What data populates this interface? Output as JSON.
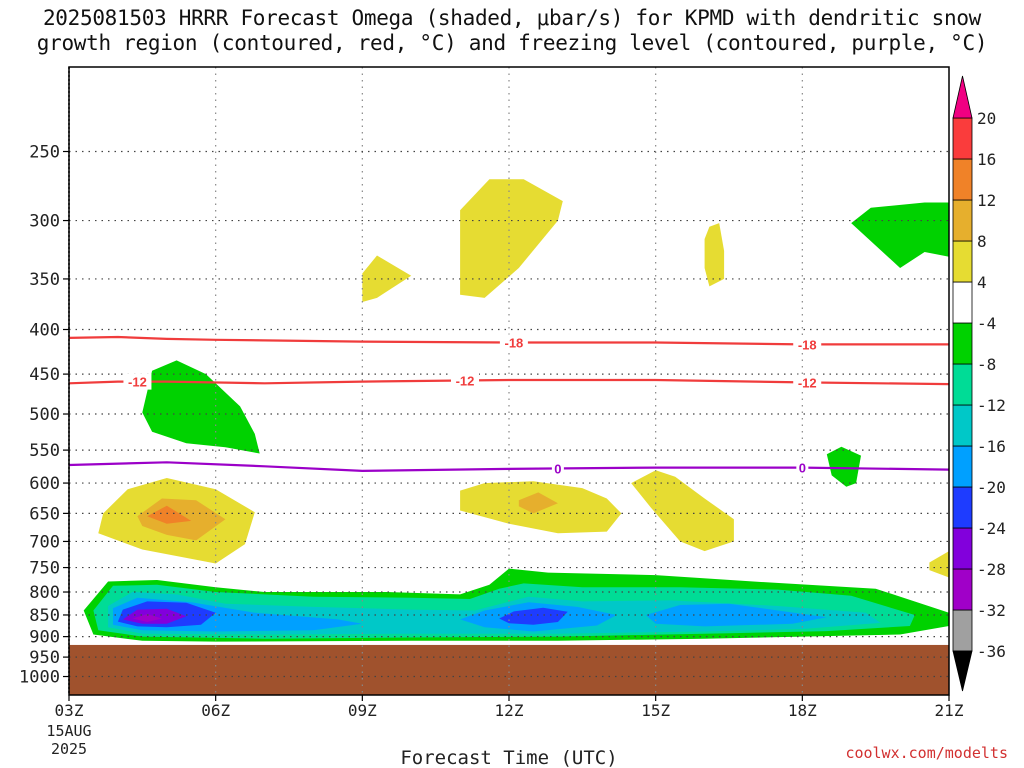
{
  "title": {
    "line1": "2025081503 HRRR Forecast Omega (shaded, μbar/s) for KPMD with dendritic snow",
    "line2": "growth region (contoured, red, °C) and freezing level (contoured, purple, °C)"
  },
  "credit": "coolwx.com/modelts",
  "chart_data": {
    "type": "heatmap",
    "title": "2025081503 HRRR Forecast Omega (shaded, μbar/s) for KPMD with dendritic snow growth region (contoured, red, °C) and freezing level (contoured, purple, °C)",
    "xlabel": "Forecast Time (UTC)",
    "ylabel": "",
    "x_hours_range": [
      3,
      21
    ],
    "x_ticks": [
      {
        "hour": 3,
        "label": "03Z",
        "sub": [
          "15AUG",
          "2025"
        ]
      },
      {
        "hour": 6,
        "label": "06Z"
      },
      {
        "hour": 9,
        "label": "09Z"
      },
      {
        "hour": 12,
        "label": "12Z"
      },
      {
        "hour": 15,
        "label": "15Z"
      },
      {
        "hour": 18,
        "label": "18Z"
      },
      {
        "hour": 21,
        "label": "21Z"
      }
    ],
    "y_scale": "log",
    "y_range_hpa": [
      1050,
      200
    ],
    "y_ticks": [
      250,
      300,
      350,
      400,
      450,
      500,
      550,
      600,
      650,
      700,
      750,
      800,
      850,
      900,
      950,
      1000
    ],
    "grid": true,
    "surface_pressure_hpa": 920,
    "surface_color": "#a0522d",
    "colorbar": {
      "levels": [
        -36,
        -32,
        -28,
        -24,
        -20,
        -16,
        -12,
        -8,
        -4,
        4,
        8,
        12,
        16,
        20
      ],
      "colors": [
        "#a0a0a0",
        "#a000c8",
        "#8200dc",
        "#1e3cff",
        "#00a0ff",
        "#00c8c8",
        "#00dc96",
        "#00d200",
        "#ffffff",
        "#e6dc32",
        "#e6af2d",
        "#f08228",
        "#fa3c3c",
        "#f00082"
      ],
      "under_color": "#000000",
      "over_color": "#f00082"
    },
    "omega_regions": [
      {
        "value": 6,
        "points": [
          [
            11.0,
            365
          ],
          [
            11.0,
            292
          ],
          [
            11.6,
            269
          ],
          [
            12.3,
            269
          ],
          [
            13.1,
            285
          ],
          [
            13.0,
            300
          ],
          [
            12.2,
            340
          ],
          [
            11.5,
            368
          ]
        ]
      },
      {
        "value": 6,
        "points": [
          [
            9.0,
            345
          ],
          [
            9.3,
            329
          ],
          [
            10.0,
            347
          ],
          [
            9.3,
            368
          ],
          [
            9.0,
            372
          ]
        ]
      },
      {
        "value": 6,
        "points": [
          [
            16.0,
            315
          ],
          [
            16.1,
            305
          ],
          [
            16.3,
            302
          ],
          [
            16.4,
            325
          ],
          [
            16.4,
            350
          ],
          [
            16.1,
            357
          ],
          [
            16.0,
            340
          ]
        ]
      },
      {
        "value": -6,
        "points": [
          [
            20.0,
            340
          ],
          [
            19.0,
            302
          ],
          [
            19.4,
            290
          ],
          [
            20.5,
            286
          ],
          [
            21.0,
            286
          ],
          [
            21.0,
            330
          ],
          [
            20.5,
            326
          ]
        ]
      },
      {
        "value": -6,
        "points": [
          [
            4.5,
            498
          ],
          [
            4.7,
            446
          ],
          [
            5.2,
            434
          ],
          [
            5.8,
            450
          ],
          [
            6.5,
            490
          ],
          [
            6.8,
            527
          ],
          [
            6.9,
            555
          ],
          [
            6.2,
            546
          ],
          [
            5.4,
            540
          ],
          [
            4.7,
            524
          ]
        ]
      },
      {
        "value": -6,
        "points": [
          [
            18.5,
            556
          ],
          [
            18.8,
            545
          ],
          [
            19.2,
            558
          ],
          [
            19.1,
            600
          ],
          [
            18.9,
            606
          ],
          [
            18.6,
            588
          ]
        ]
      },
      {
        "value": 6,
        "points": [
          [
            3.7,
            650
          ],
          [
            4.2,
            610
          ],
          [
            5.0,
            592
          ],
          [
            6.0,
            610
          ],
          [
            6.8,
            648
          ],
          [
            6.6,
            705
          ],
          [
            6.0,
            742
          ],
          [
            4.5,
            715
          ],
          [
            3.6,
            685
          ]
        ]
      },
      {
        "value": 10,
        "points": [
          [
            4.4,
            655
          ],
          [
            4.9,
            625
          ],
          [
            5.6,
            628
          ],
          [
            6.2,
            660
          ],
          [
            5.6,
            698
          ],
          [
            5.0,
            688
          ],
          [
            4.5,
            672
          ]
        ]
      },
      {
        "value": 14,
        "points": [
          [
            4.6,
            655
          ],
          [
            5.0,
            637
          ],
          [
            5.5,
            663
          ],
          [
            5.0,
            668
          ]
        ]
      },
      {
        "value": 6,
        "points": [
          [
            11.0,
            612
          ],
          [
            11.5,
            600
          ],
          [
            12.5,
            597
          ],
          [
            13.5,
            608
          ],
          [
            14.0,
            625
          ],
          [
            14.3,
            650
          ],
          [
            14.0,
            682
          ],
          [
            13.0,
            685
          ],
          [
            12.0,
            668
          ],
          [
            11.0,
            645
          ]
        ]
      },
      {
        "value": 10,
        "points": [
          [
            12.2,
            628
          ],
          [
            12.6,
            615
          ],
          [
            13.0,
            633
          ],
          [
            12.5,
            650
          ],
          [
            12.2,
            638
          ]
        ]
      },
      {
        "value": 6,
        "points": [
          [
            15.0,
            580
          ],
          [
            15.4,
            590
          ],
          [
            16.0,
            625
          ],
          [
            16.6,
            660
          ],
          [
            16.6,
            700
          ],
          [
            16.0,
            718
          ],
          [
            15.5,
            700
          ],
          [
            14.9,
            640
          ],
          [
            14.5,
            600
          ]
        ]
      },
      {
        "value": 6,
        "points": [
          [
            20.6,
            740
          ],
          [
            21.0,
            718
          ],
          [
            21.0,
            770
          ],
          [
            20.6,
            755
          ]
        ]
      },
      {
        "value": -6,
        "points": [
          [
            3.5,
            895
          ],
          [
            3.3,
            840
          ],
          [
            3.8,
            778
          ],
          [
            4.8,
            775
          ],
          [
            6.0,
            790
          ],
          [
            7.0,
            800
          ],
          [
            9.5,
            800
          ],
          [
            11.0,
            805
          ],
          [
            11.6,
            785
          ],
          [
            12.0,
            752
          ],
          [
            12.8,
            760
          ],
          [
            15.0,
            765
          ],
          [
            17.0,
            778
          ],
          [
            19.5,
            793
          ],
          [
            21.0,
            845
          ],
          [
            21.0,
            875
          ],
          [
            20.0,
            895
          ],
          [
            16.0,
            905
          ],
          [
            13.0,
            910
          ],
          [
            10.0,
            910
          ],
          [
            6.0,
            912
          ],
          [
            4.5,
            910
          ]
        ]
      },
      {
        "value": -10,
        "points": [
          [
            3.6,
            885
          ],
          [
            3.5,
            840
          ],
          [
            3.9,
            787
          ],
          [
            4.8,
            785
          ],
          [
            6.0,
            800
          ],
          [
            8.0,
            810
          ],
          [
            10.0,
            812
          ],
          [
            11.2,
            815
          ],
          [
            11.8,
            793
          ],
          [
            12.3,
            782
          ],
          [
            13.5,
            790
          ],
          [
            15.5,
            790
          ],
          [
            17.5,
            795
          ],
          [
            19.0,
            808
          ],
          [
            20.3,
            850
          ],
          [
            20.2,
            875
          ],
          [
            18.5,
            887
          ],
          [
            16.5,
            892
          ],
          [
            13.0,
            900
          ],
          [
            10.0,
            902
          ],
          [
            7.0,
            905
          ],
          [
            4.5,
            900
          ]
        ]
      },
      {
        "value": -14,
        "points": [
          [
            3.8,
            878
          ],
          [
            3.8,
            830
          ],
          [
            4.3,
            800
          ],
          [
            5.2,
            805
          ],
          [
            6.2,
            825
          ],
          [
            8.0,
            832
          ],
          [
            10.0,
            838
          ],
          [
            11.3,
            840
          ],
          [
            12.4,
            810
          ],
          [
            13.5,
            820
          ],
          [
            15.3,
            818
          ],
          [
            17.5,
            830
          ],
          [
            19.3,
            845
          ],
          [
            19.6,
            868
          ],
          [
            18.0,
            882
          ],
          [
            16.0,
            888
          ],
          [
            13.0,
            893
          ],
          [
            10.0,
            893
          ],
          [
            7.0,
            895
          ],
          [
            4.5,
            893
          ]
        ]
      },
      {
        "value": -18,
        "points": [
          [
            3.9,
            872
          ],
          [
            3.9,
            835
          ],
          [
            4.4,
            812
          ],
          [
            5.5,
            822
          ],
          [
            6.8,
            845
          ],
          [
            8.5,
            860
          ],
          [
            9.0,
            870
          ],
          [
            8.0,
            885
          ],
          [
            6.0,
            888
          ],
          [
            4.5,
            885
          ]
        ]
      },
      {
        "value": -18,
        "points": [
          [
            11.0,
            860
          ],
          [
            11.5,
            840
          ],
          [
            12.4,
            822
          ],
          [
            13.4,
            832
          ],
          [
            14.2,
            850
          ],
          [
            13.8,
            874
          ],
          [
            12.5,
            888
          ],
          [
            11.5,
            878
          ]
        ]
      },
      {
        "value": -18,
        "points": [
          [
            14.8,
            850
          ],
          [
            15.5,
            828
          ],
          [
            16.5,
            825
          ],
          [
            17.5,
            840
          ],
          [
            18.5,
            855
          ],
          [
            17.8,
            870
          ],
          [
            16.0,
            876
          ],
          [
            15.0,
            870
          ]
        ]
      },
      {
        "value": -22,
        "points": [
          [
            4.0,
            865
          ],
          [
            4.1,
            838
          ],
          [
            4.6,
            820
          ],
          [
            5.4,
            823
          ],
          [
            6.0,
            845
          ],
          [
            5.7,
            872
          ],
          [
            5.0,
            878
          ],
          [
            4.4,
            876
          ]
        ]
      },
      {
        "value": -22,
        "points": [
          [
            11.8,
            858
          ],
          [
            12.1,
            842
          ],
          [
            12.7,
            834
          ],
          [
            13.2,
            843
          ],
          [
            13.0,
            866
          ],
          [
            12.5,
            872
          ],
          [
            12.0,
            869
          ]
        ]
      },
      {
        "value": -26,
        "points": [
          [
            4.1,
            860
          ],
          [
            4.4,
            838
          ],
          [
            5.0,
            836
          ],
          [
            5.4,
            853
          ],
          [
            5.0,
            870
          ],
          [
            4.5,
            870
          ]
        ]
      },
      {
        "value": -30,
        "points": [
          [
            4.3,
            858
          ],
          [
            4.6,
            848
          ],
          [
            4.9,
            858
          ],
          [
            4.6,
            866
          ]
        ]
      }
    ],
    "contours": [
      {
        "kind": "dgz",
        "value": -18,
        "label": "-18",
        "color": "#f03c3c",
        "points": [
          [
            3,
            409
          ],
          [
            4,
            408
          ],
          [
            5,
            410
          ],
          [
            6,
            411
          ],
          [
            9,
            413
          ],
          [
            12,
            414
          ],
          [
            15,
            414
          ],
          [
            18,
            416
          ],
          [
            21,
            416
          ]
        ],
        "label_hours": [
          12.1,
          18.1
        ]
      },
      {
        "kind": "dgz",
        "value": -12,
        "label": "-12",
        "color": "#f03c3c",
        "points": [
          [
            3,
            461
          ],
          [
            4,
            459
          ],
          [
            5,
            459
          ],
          [
            7,
            461
          ],
          [
            9,
            459
          ],
          [
            12,
            457
          ],
          [
            15,
            457
          ],
          [
            18,
            460
          ],
          [
            21,
            462
          ]
        ],
        "label_hours": [
          4.4,
          11.1,
          18.1
        ]
      },
      {
        "kind": "freezing",
        "value": 0,
        "label": "0",
        "color": "#9b00c8",
        "points": [
          [
            3,
            572
          ],
          [
            5,
            568
          ],
          [
            7,
            574
          ],
          [
            9,
            581
          ],
          [
            12,
            578
          ],
          [
            15,
            576
          ],
          [
            18,
            576
          ],
          [
            21,
            579
          ]
        ],
        "label_hours": [
          13.0,
          18.0
        ]
      }
    ]
  }
}
